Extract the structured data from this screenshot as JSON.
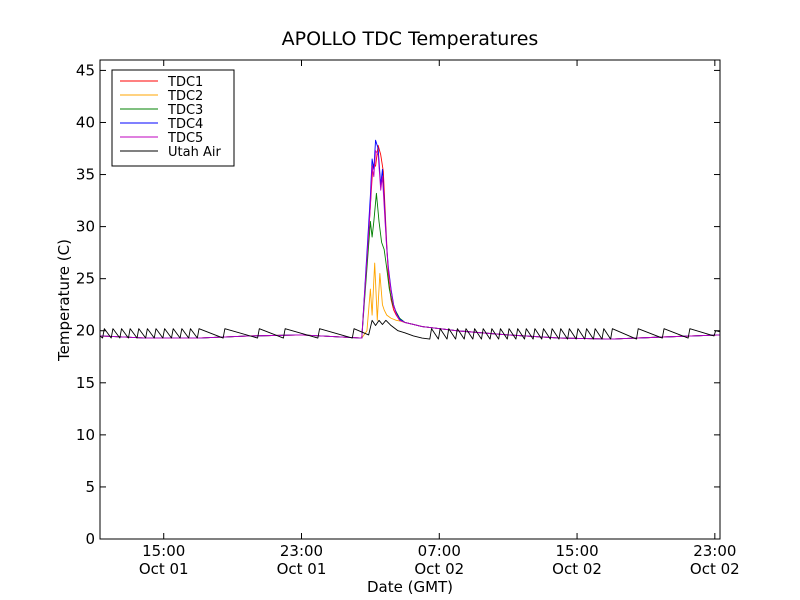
{
  "chart_data": {
    "type": "line",
    "title": "APOLLO TDC Temperatures",
    "xlabel": "Date (GMT)",
    "ylabel": "Temperature (C)",
    "x_unit": "hours since Oct 01 00:00 GMT",
    "xlim": [
      11.3,
      47.3
    ],
    "ylim": [
      0,
      46
    ],
    "yticks": [
      0,
      5,
      10,
      15,
      20,
      25,
      30,
      35,
      40,
      45
    ],
    "xticks": [
      {
        "value": 15,
        "time": "15:00",
        "date": "Oct 01"
      },
      {
        "value": 23,
        "time": "23:00",
        "date": "Oct 01"
      },
      {
        "value": 31,
        "time": "07:00",
        "date": "Oct 02"
      },
      {
        "value": 39,
        "time": "15:00",
        "date": "Oct 02"
      },
      {
        "value": 47,
        "time": "23:00",
        "date": "Oct 02"
      }
    ],
    "legend_position": "top-left",
    "series": [
      {
        "name": "TDC1",
        "color": "#ff0000",
        "x": [
          11.3,
          14.0,
          17.0,
          20.0,
          23.0,
          26.5,
          27.0,
          27.15,
          27.3,
          27.45,
          27.6,
          27.75,
          27.9,
          28.05,
          28.2,
          28.35,
          28.5,
          28.7,
          29.0,
          29.5,
          30.0,
          32.0,
          35.0,
          38.0,
          41.0,
          44.0,
          47.3
        ],
        "y": [
          19.5,
          19.3,
          19.3,
          19.5,
          19.6,
          19.3,
          32.0,
          36.0,
          35.8,
          37.8,
          36.9,
          35.3,
          30.0,
          25.0,
          23.0,
          22.0,
          21.5,
          21.0,
          20.8,
          20.6,
          20.4,
          20.0,
          19.6,
          19.3,
          19.2,
          19.4,
          19.6
        ]
      },
      {
        "name": "TDC2",
        "color": "#ffa500",
        "x": [
          11.3,
          14.0,
          17.0,
          20.0,
          23.0,
          26.5,
          26.8,
          27.0,
          27.1,
          27.25,
          27.4,
          27.55,
          27.7,
          27.8,
          27.95,
          28.2,
          28.5,
          28.8,
          29.0,
          29.5,
          30.0,
          32.0,
          35.0,
          38.0,
          41.0,
          44.0,
          47.3
        ],
        "y": [
          19.5,
          19.3,
          19.3,
          19.5,
          19.6,
          19.3,
          20.0,
          24.0,
          21.5,
          26.5,
          21.0,
          25.5,
          22.5,
          22.0,
          21.5,
          21.2,
          21.0,
          20.9,
          20.8,
          20.6,
          20.4,
          20.0,
          19.6,
          19.3,
          19.2,
          19.4,
          19.6
        ]
      },
      {
        "name": "TDC3",
        "color": "#008000",
        "x": [
          11.3,
          14.0,
          17.0,
          20.0,
          23.0,
          26.5,
          27.0,
          27.1,
          27.2,
          27.35,
          27.5,
          27.65,
          27.8,
          27.95,
          28.1,
          28.3,
          28.5,
          28.7,
          29.0,
          29.5,
          30.0,
          32.0,
          35.0,
          38.0,
          41.0,
          44.0,
          47.3
        ],
        "y": [
          19.5,
          19.3,
          19.3,
          19.5,
          19.6,
          19.3,
          30.5,
          29.0,
          30.5,
          33.2,
          30.5,
          28.5,
          27.8,
          26.0,
          24.0,
          22.5,
          21.8,
          21.2,
          20.8,
          20.6,
          20.4,
          20.0,
          19.6,
          19.3,
          19.2,
          19.4,
          19.6
        ]
      },
      {
        "name": "TDC4",
        "color": "#0000ff",
        "x": [
          11.3,
          14.0,
          17.0,
          20.0,
          23.0,
          26.5,
          27.0,
          27.1,
          27.2,
          27.3,
          27.45,
          27.6,
          27.7,
          27.85,
          27.95,
          28.05,
          28.2,
          28.35,
          28.5,
          28.7,
          29.0,
          29.5,
          30.0,
          32.0,
          35.0,
          38.0,
          41.0,
          44.0,
          47.3
        ],
        "y": [
          19.5,
          19.3,
          19.3,
          19.5,
          19.6,
          19.3,
          33.0,
          36.5,
          35.5,
          38.3,
          37.5,
          34.0,
          35.5,
          31.0,
          28.0,
          26.0,
          24.0,
          22.5,
          21.7,
          21.1,
          20.8,
          20.6,
          20.4,
          20.0,
          19.6,
          19.3,
          19.2,
          19.4,
          19.6
        ]
      },
      {
        "name": "TDC5",
        "color": "#bf00bf",
        "x": [
          11.3,
          14.0,
          17.0,
          20.0,
          23.0,
          26.5,
          27.0,
          27.1,
          27.2,
          27.3,
          27.45,
          27.6,
          27.7,
          27.85,
          27.95,
          28.05,
          28.2,
          28.35,
          28.5,
          28.7,
          29.0,
          29.5,
          30.0,
          32.0,
          35.0,
          38.0,
          41.0,
          44.0,
          47.3
        ],
        "y": [
          19.5,
          19.3,
          19.3,
          19.5,
          19.6,
          19.3,
          32.0,
          35.8,
          34.8,
          37.3,
          36.9,
          33.5,
          34.8,
          30.5,
          27.8,
          25.8,
          23.8,
          22.4,
          21.6,
          21.0,
          20.8,
          20.6,
          20.4,
          20.0,
          19.6,
          19.3,
          19.2,
          19.4,
          19.6
        ]
      },
      {
        "name": "Utah Air",
        "color": "#000000",
        "x": [
          11.3,
          11.45,
          11.55,
          11.95,
          12.05,
          12.45,
          12.55,
          12.95,
          13.05,
          13.45,
          13.55,
          13.95,
          14.05,
          14.45,
          14.55,
          14.95,
          15.05,
          15.45,
          15.55,
          15.95,
          16.05,
          16.45,
          16.55,
          16.95,
          17.05,
          18.45,
          18.55,
          20.45,
          20.55,
          21.95,
          22.05,
          23.95,
          24.05,
          25.95,
          26.05,
          26.9,
          27.1,
          27.3,
          27.5,
          27.7,
          27.9,
          28.2,
          28.6,
          29.0,
          29.5,
          30.0,
          30.45,
          30.55,
          30.95,
          31.05,
          31.45,
          31.55,
          31.95,
          32.05,
          32.45,
          32.55,
          32.95,
          33.05,
          33.45,
          33.55,
          33.95,
          34.05,
          34.45,
          34.55,
          34.95,
          35.05,
          35.45,
          35.55,
          35.95,
          36.05,
          36.45,
          36.55,
          36.95,
          37.05,
          37.45,
          37.55,
          37.95,
          38.05,
          38.45,
          38.55,
          38.95,
          39.05,
          39.45,
          39.55,
          39.95,
          40.05,
          40.45,
          40.55,
          40.95,
          41.05,
          42.45,
          42.55,
          43.95,
          44.05,
          45.45,
          45.55,
          46.95,
          47.05,
          47.3
        ],
        "y": [
          19.5,
          19.3,
          20.2,
          19.3,
          20.2,
          19.3,
          20.2,
          19.3,
          20.2,
          19.3,
          20.2,
          19.3,
          20.2,
          19.3,
          20.2,
          19.3,
          20.2,
          19.3,
          20.2,
          19.3,
          20.2,
          19.3,
          20.2,
          19.3,
          20.2,
          19.3,
          20.2,
          19.3,
          20.2,
          19.3,
          20.2,
          19.3,
          20.2,
          19.3,
          20.2,
          19.6,
          21.0,
          20.5,
          21.0,
          20.6,
          21.0,
          20.5,
          20.0,
          19.8,
          19.5,
          19.3,
          19.2,
          20.2,
          19.2,
          20.2,
          19.2,
          20.2,
          19.2,
          20.2,
          19.2,
          20.2,
          19.2,
          20.2,
          19.2,
          20.2,
          19.2,
          20.2,
          19.2,
          20.2,
          19.2,
          20.2,
          19.2,
          20.2,
          19.2,
          20.2,
          19.2,
          20.2,
          19.2,
          20.2,
          19.2,
          20.2,
          19.2,
          20.2,
          19.2,
          20.2,
          19.2,
          20.2,
          19.2,
          20.2,
          19.2,
          20.2,
          19.2,
          20.2,
          19.2,
          20.2,
          19.2,
          20.2,
          19.3,
          20.2,
          19.3,
          20.2,
          19.5,
          20.0,
          19.9
        ]
      }
    ]
  }
}
